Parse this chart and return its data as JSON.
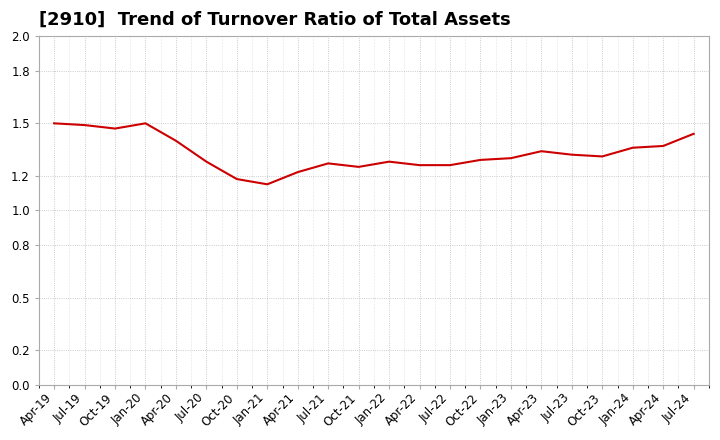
{
  "title": "[2910]  Trend of Turnover Ratio of Total Assets",
  "x_labels": [
    "Apr-19",
    "Jul-19",
    "Oct-19",
    "Jan-20",
    "Apr-20",
    "Jul-20",
    "Oct-20",
    "Jan-21",
    "Apr-21",
    "Jul-21",
    "Oct-21",
    "Jan-22",
    "Apr-22",
    "Jul-22",
    "Oct-22",
    "Jan-23",
    "Apr-23",
    "Jul-23",
    "Oct-23",
    "Jan-24",
    "Apr-24",
    "Jul-24"
  ],
  "values": [
    1.5,
    1.49,
    1.47,
    1.5,
    1.4,
    1.28,
    1.18,
    1.15,
    1.22,
    1.27,
    1.25,
    1.28,
    1.26,
    1.26,
    1.29,
    1.3,
    1.34,
    1.32,
    1.31,
    1.36,
    1.37,
    1.44
  ],
  "line_color": "#cc0000",
  "line_width": 1.5,
  "ylim": [
    0.0,
    2.0
  ],
  "yticks": [
    0.0,
    0.2,
    0.5,
    0.8,
    1.0,
    1.2,
    1.5,
    1.8,
    2.0
  ],
  "background_color": "#ffffff",
  "grid_color": "#aaaaaa",
  "title_fontsize": 13,
  "tick_fontsize": 8.5
}
